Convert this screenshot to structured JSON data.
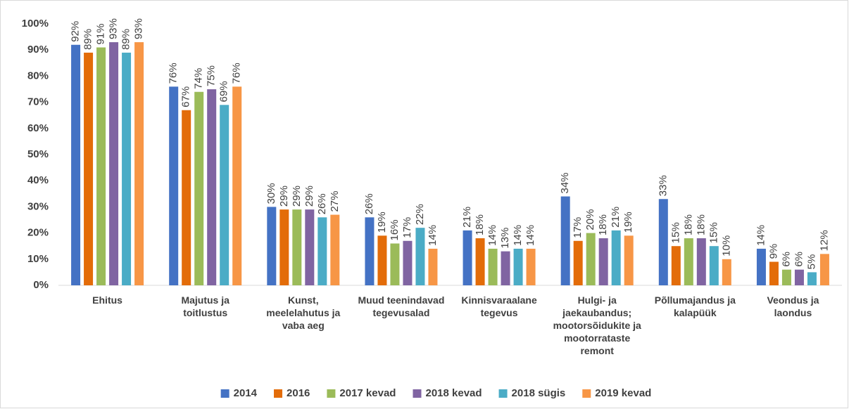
{
  "chart_data": {
    "type": "bar",
    "categories": [
      "Ehitus",
      "Majutus ja toitlustus",
      "Kunst, meelelahutus ja vaba aeg",
      "Muud teenindavad tegevusalad",
      "Kinnisvaraalane tegevus",
      "Hulgi- ja jaekaubandus; mootorsõidukite ja mootorrataste remont",
      "Põllumajandus ja kalapüük",
      "Veondus ja laondus"
    ],
    "series": [
      {
        "name": "2014",
        "color": "#4472c4",
        "values": [
          92,
          76,
          30,
          26,
          21,
          34,
          33,
          14
        ],
        "value_labels": [
          "92%",
          "76%",
          "30%",
          "26%",
          "21%",
          "34%",
          "33%",
          "14%"
        ]
      },
      {
        "name": "2016",
        "color": "#e36c09",
        "values": [
          89,
          67,
          29,
          19,
          18,
          17,
          15,
          9
        ],
        "value_labels": [
          "89%",
          "67%",
          "29%",
          "19%",
          "18%",
          "17%",
          "15%",
          "9%"
        ]
      },
      {
        "name": "2017 kevad",
        "color": "#9bbb59",
        "values": [
          91,
          74,
          29,
          16,
          14,
          20,
          18,
          6
        ],
        "value_labels": [
          "91%",
          "74%",
          "29%",
          "16%",
          "14%",
          "20%",
          "18%",
          "6%"
        ]
      },
      {
        "name": "2018 kevad",
        "color": "#8064a2",
        "values": [
          93,
          75,
          29,
          17,
          13,
          18,
          18,
          6
        ],
        "value_labels": [
          "93%",
          "75%",
          "29%",
          "17%",
          "13%",
          "18%",
          "18%",
          "6%"
        ]
      },
      {
        "name": "2018 sügis",
        "color": "#4bacc6",
        "values": [
          89,
          69,
          26,
          22,
          14,
          21,
          15,
          5
        ],
        "value_labels": [
          "89%",
          "69%",
          "26%",
          "22%",
          "14%",
          "21%",
          "15%",
          "5%"
        ]
      },
      {
        "name": "2019 kevad",
        "color": "#f79646",
        "values": [
          93,
          76,
          27,
          14,
          14,
          19,
          10,
          12
        ],
        "value_labels": [
          "93%",
          "76%",
          "27%",
          "14%",
          "14%",
          "19%",
          "10%",
          "12%"
        ]
      }
    ],
    "ylim": [
      0,
      100
    ],
    "yticks": [
      {
        "value": 0,
        "label": "0%"
      },
      {
        "value": 10,
        "label": "10%"
      },
      {
        "value": 20,
        "label": "20%"
      },
      {
        "value": 30,
        "label": "30%"
      },
      {
        "value": 40,
        "label": "40%"
      },
      {
        "value": 50,
        "label": "50%"
      },
      {
        "value": 60,
        "label": "60%"
      },
      {
        "value": 70,
        "label": "70%"
      },
      {
        "value": 80,
        "label": "80%"
      },
      {
        "value": 90,
        "label": "90%"
      },
      {
        "value": 100,
        "label": "100%"
      }
    ],
    "grid": false,
    "legend": "bottom"
  }
}
